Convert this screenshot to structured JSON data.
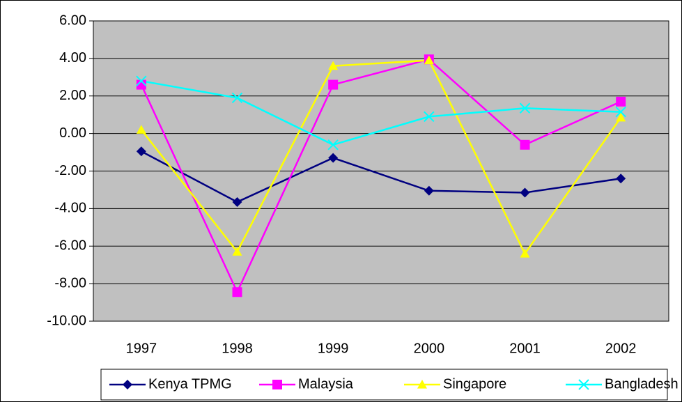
{
  "chart_data": {
    "type": "line",
    "categories": [
      "1997",
      "1998",
      "1999",
      "2000",
      "2001",
      "2002"
    ],
    "series": [
      {
        "name": "Kenya TPMG",
        "color": "#000080",
        "marker": "diamond",
        "values": [
          -0.95,
          -3.65,
          -1.3,
          -3.05,
          -3.15,
          -2.4
        ]
      },
      {
        "name": "Malaysia",
        "color": "#ff00ff",
        "marker": "square",
        "values": [
          2.6,
          -8.45,
          2.6,
          3.95,
          -0.6,
          1.7
        ]
      },
      {
        "name": "Singapore",
        "color": "#ffff00",
        "marker": "triangle",
        "values": [
          0.2,
          -6.3,
          3.6,
          3.9,
          -6.4,
          0.85
        ]
      },
      {
        "name": "Bangladesh",
        "color": "#00ffff",
        "marker": "x",
        "values": [
          2.8,
          1.9,
          -0.6,
          0.9,
          1.35,
          1.15
        ]
      }
    ],
    "ylim": [
      -10,
      6
    ],
    "yticks": [
      {
        "value": -10,
        "label": "-10.00"
      },
      {
        "value": -8,
        "label": "-8.00"
      },
      {
        "value": -6,
        "label": "-6.00"
      },
      {
        "value": -4,
        "label": "-4.00"
      },
      {
        "value": -2,
        "label": "-2.00"
      },
      {
        "value": 0,
        "label": "0.00"
      },
      {
        "value": 2,
        "label": "2.00"
      },
      {
        "value": 4,
        "label": "4.00"
      },
      {
        "value": 6,
        "label": "6.00"
      }
    ],
    "grid": true,
    "legend": "bottom",
    "background": "#c0c0c0"
  }
}
